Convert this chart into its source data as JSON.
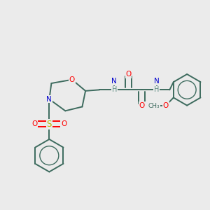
{
  "background_color": "#ebebeb",
  "bond_color": "#3d6b5e",
  "atom_colors": {
    "O": "#ff0000",
    "N": "#0000cd",
    "S": "#b8b800",
    "H": "#5a8a80",
    "C": "#3d6b5e"
  },
  "figsize": [
    3.0,
    3.0
  ],
  "dpi": 100
}
